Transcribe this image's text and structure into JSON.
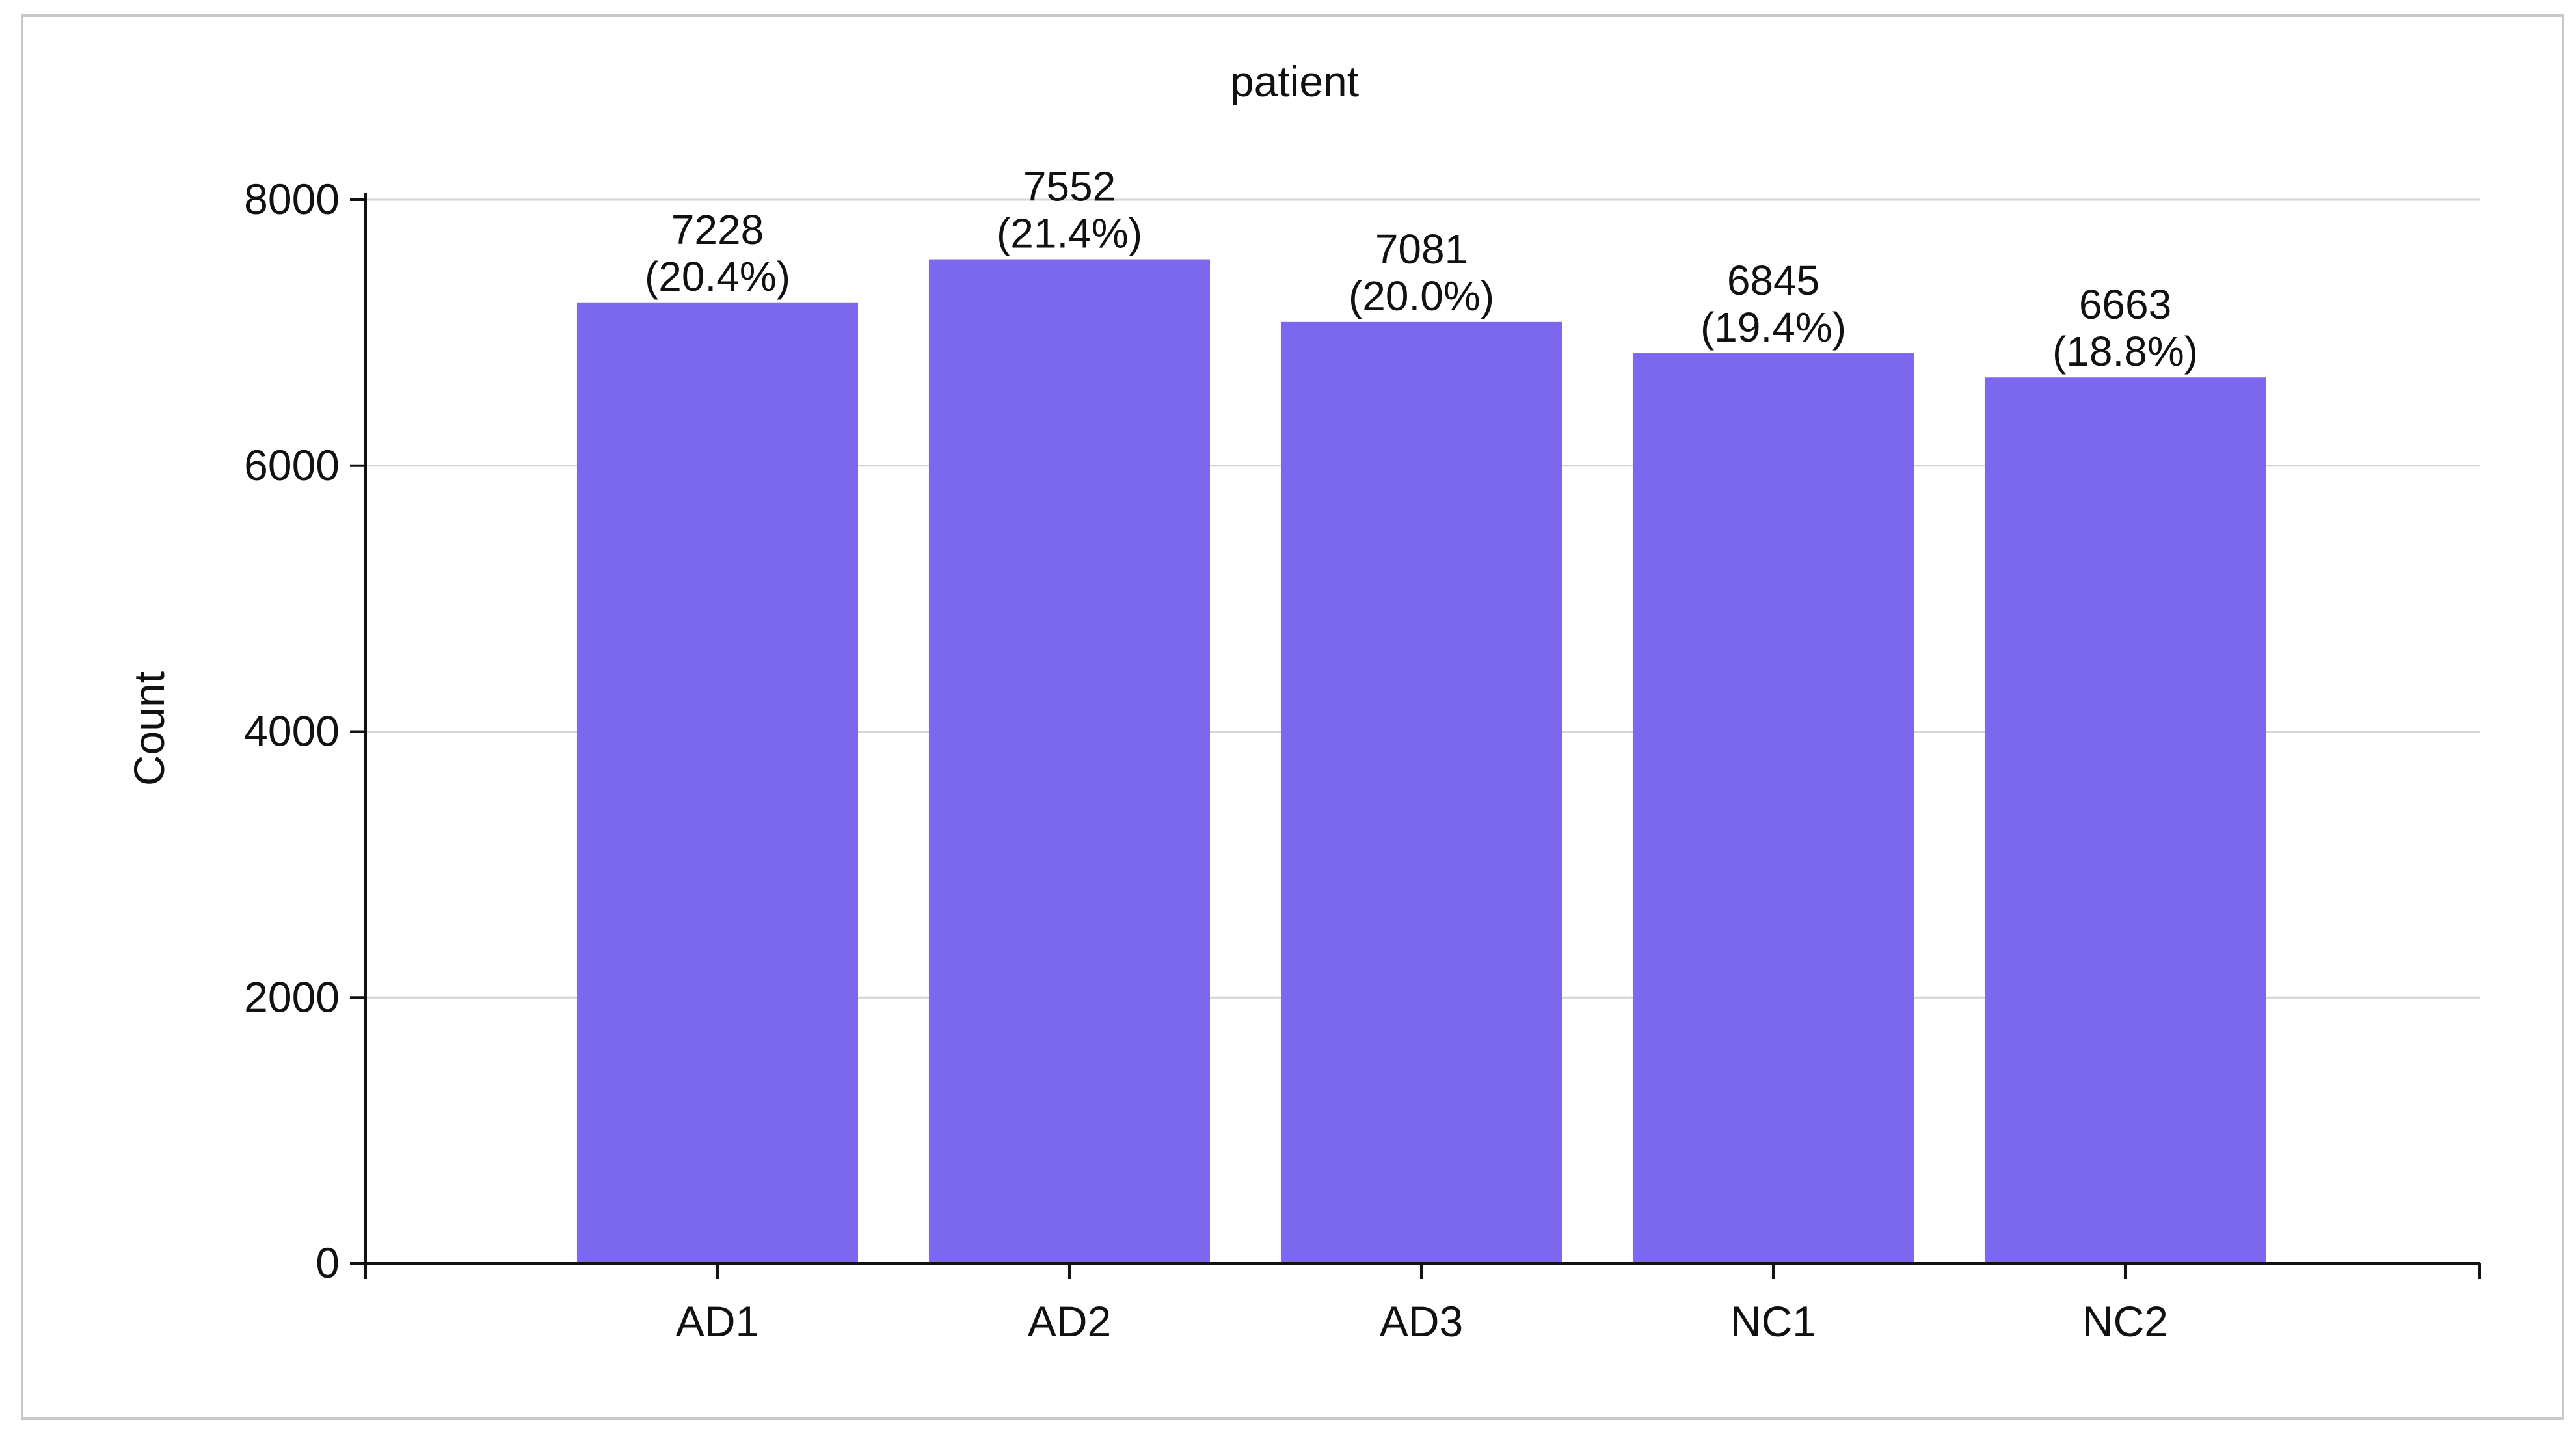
{
  "chart_data": {
    "type": "bar",
    "title": "patient",
    "xlabel": "",
    "ylabel": "Count",
    "categories": [
      "AD1",
      "AD2",
      "AD3",
      "NC1",
      "NC2"
    ],
    "values": [
      7228,
      7552,
      7081,
      6845,
      6663
    ],
    "value_labels": [
      "7228",
      "7552",
      "7081",
      "6845",
      "6663"
    ],
    "percent_labels": [
      "(20.4%)",
      "(21.4%)",
      "(20.0%)",
      "(19.4%)",
      "(18.8%)"
    ],
    "y_ticks": [
      0,
      2000,
      4000,
      6000,
      8000
    ],
    "ylim": [
      0,
      8000
    ],
    "grid": "horizontal",
    "legend": "none",
    "bar_color": "#7b68ee"
  }
}
